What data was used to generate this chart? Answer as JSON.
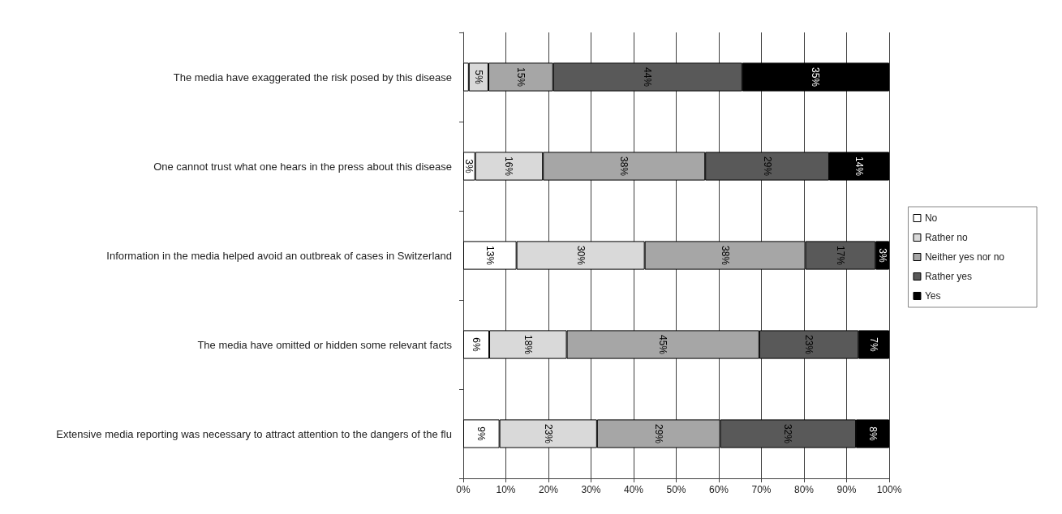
{
  "chart_data": {
    "type": "bar",
    "orientation": "horizontal",
    "stacked": true,
    "categories": [
      "The media have exaggerated the risk posed by this disease",
      "One cannot trust what one hears in the press about this disease",
      "Information in the media helped avoid an outbreak of cases in Switzerland",
      "The media have omitted or hidden some relevant facts",
      "Extensive media reporting was necessary to attract attention to the dangers of the flu"
    ],
    "series": [
      {
        "name": "No",
        "color": "#ffffff",
        "values": [
          1.3,
          2.8,
          12.5,
          6.1,
          8.5
        ],
        "value_labels": [
          null,
          "3%",
          "13%",
          "6%",
          "9%"
        ]
      },
      {
        "name": "Rather no",
        "color": "#d9d9d9",
        "values": [
          4.6,
          15.9,
          30.1,
          18.2,
          22.9
        ],
        "value_labels": [
          "5%",
          "16%",
          "30%",
          "18%",
          "23%"
        ]
      },
      {
        "name": "Neither yes nor no",
        "color": "#a6a6a6",
        "values": [
          15.2,
          38.1,
          37.7,
          45.2,
          28.9
        ],
        "value_labels": [
          "15%",
          "38%",
          "38%",
          "45%",
          "29%"
        ]
      },
      {
        "name": "Rather yes",
        "color": "#595959",
        "values": [
          44.4,
          29.1,
          16.5,
          23.3,
          31.9
        ],
        "value_labels": [
          "44%",
          "29%",
          "17%",
          "23%",
          "32%"
        ]
      },
      {
        "name": "Yes",
        "color": "#000000",
        "values": [
          34.5,
          14.1,
          3.2,
          7.2,
          7.8
        ],
        "value_labels": [
          "35%",
          "14%",
          "3%",
          "7%",
          "8%"
        ]
      }
    ],
    "xlim": [
      0,
      100
    ],
    "xticks": [
      {
        "value": 0,
        "label": "0%"
      },
      {
        "value": 10,
        "label": "10%"
      },
      {
        "value": 20,
        "label": "20%"
      },
      {
        "value": 30,
        "label": "30%"
      },
      {
        "value": 40,
        "label": "40%"
      },
      {
        "value": 50,
        "label": "50%"
      },
      {
        "value": 60,
        "label": "60%"
      },
      {
        "value": 70,
        "label": "70%"
      },
      {
        "value": 80,
        "label": "80%"
      },
      {
        "value": 90,
        "label": "90%"
      },
      {
        "value": 100,
        "label": "100%"
      }
    ],
    "grid": "x",
    "legend": "right"
  }
}
